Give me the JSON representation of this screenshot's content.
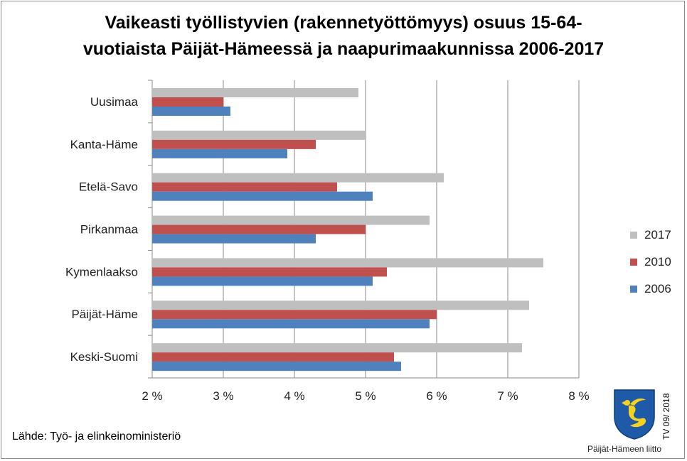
{
  "chart_data": {
    "type": "bar",
    "orientation": "horizontal",
    "title_line1": "Vaikeasti työllistyvien (rakennetyöttömyys) osuus 15-64-",
    "title_line2": "vuotiaista Päijät-Hämeessä ja naapurimaakunnissa 2006-2017",
    "categories": [
      "Uusimaa",
      "Kanta-Häme",
      "Etelä-Savo",
      "Pirkanmaa",
      "Kymenlaakso",
      "Päijät-Häme",
      "Keski-Suomi"
    ],
    "series": [
      {
        "name": "2017",
        "color": "#bfbfbf",
        "values": [
          4.9,
          5.0,
          6.1,
          5.9,
          7.5,
          7.3,
          7.2
        ]
      },
      {
        "name": "2010",
        "color": "#c0504d",
        "values": [
          3.0,
          4.3,
          4.6,
          5.0,
          5.3,
          6.0,
          5.4
        ]
      },
      {
        "name": "2006",
        "color": "#4f81bd",
        "values": [
          3.1,
          3.9,
          5.1,
          4.3,
          5.1,
          5.9,
          5.5
        ]
      }
    ],
    "xlim": [
      2,
      8
    ],
    "xticks": [
      "2 %",
      "3 %",
      "4 %",
      "5 %",
      "6 %",
      "7 %",
      "8 %"
    ],
    "grid": true,
    "legend_position": "right"
  },
  "source": "Lähde: Työ- ja elinkeinoministeriö",
  "code": "TV 09/ 2018",
  "logo_text": "Päijät-Hämeen liitto"
}
